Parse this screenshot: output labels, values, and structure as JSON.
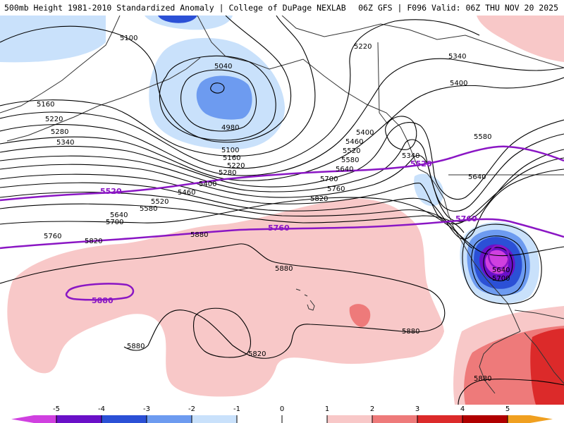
{
  "header": {
    "title": "500mb Height 1981-2010 Standardized Anomaly | College of DuPage NEXLAB",
    "run_info": "06Z GFS | F096 Valid: 06Z THU NOV 20 2025"
  },
  "colors": {
    "contour": "#000000",
    "highlight_contour": "#8a16c4",
    "coast": "#333333",
    "anom_neg1": "#c9e1fb",
    "anom_neg2": "#6d9bf0",
    "anom_neg3": "#2b50d6",
    "anom_neg4": "#6a10c8",
    "anom_neg5": "#d040e0",
    "anom_pos1": "#f8c8c8",
    "anom_pos2": "#ee7a7a",
    "anom_pos3": "#dc2a2a",
    "anom_pos4": "#b00000",
    "anom_pos5": "#f0a020"
  },
  "contour_labels": {
    "h5100_a": "5100",
    "h5040": "5040",
    "h4980": "4980",
    "h5100_b": "5100",
    "h5160_a": "5160",
    "h5220_a": "5220",
    "h5280_a": "5280",
    "h5340_a": "5340",
    "h5160_b": "5160",
    "h5220_b": "5220",
    "h5280_b": "5280",
    "h5400_a": "5400",
    "h5460_a": "5460",
    "h5520_a": "5520",
    "h5580_a": "5580",
    "h5640_a": "5640",
    "h5700_a": "5700",
    "h5760_a": "5760",
    "h5820_a": "5820",
    "h5880_a": "5880",
    "h5400_b": "5400",
    "h5460_b": "5460",
    "h5520_b": "5520",
    "h5580_b": "5580",
    "h5640_b": "5640",
    "h5700_b": "5700",
    "h5760_b": "5760",
    "h5820_b": "5820",
    "h5220_c": "5220",
    "h5340_b": "5340",
    "h5400_c": "5400",
    "h5340_c": "5340",
    "h5580_c": "5580",
    "h5640_c": "5640",
    "h5640_d": "5640",
    "h5700_c": "5700",
    "h5880_b": "5880",
    "h5880_c": "5880",
    "h5820_c": "5820",
    "h5880_d": "5880",
    "h5880_e": "5880",
    "p5520_a": "5520",
    "p5520_b": "5520",
    "p5760_a": "5760",
    "p5760_b": "5760",
    "p5880": "5880"
  },
  "colorbar": {
    "ticks": [
      "-5",
      "-4",
      "-3",
      "-2",
      "-1",
      "0",
      "1",
      "2",
      "3",
      "4",
      "5"
    ]
  }
}
